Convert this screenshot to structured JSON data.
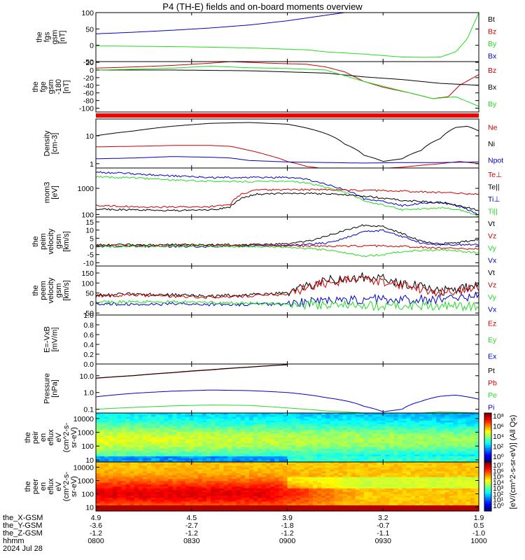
{
  "title": "P4 (TH-E) fields and on-board moments overview",
  "colors": {
    "black": "#000000",
    "red": "#cc0000",
    "green": "#22dd22",
    "blue": "#0000cc",
    "bar": "#ee0000"
  },
  "chart_data": [
    {
      "type": "line",
      "ylabel": [
        "the",
        "fgs",
        "gsm",
        "[nT]"
      ],
      "ylim": [
        -50,
        100
      ],
      "yticks": [
        "100",
        "50",
        "0",
        "-50"
      ],
      "ytick_values": [
        100,
        50,
        0,
        -50
      ],
      "legend": [
        "Bt",
        "Bz",
        "By",
        "Bx"
      ],
      "legend_colors": [
        "black",
        "red",
        "green",
        "blue"
      ],
      "series": [
        {
          "color": "blue",
          "x": [
            0,
            0.1,
            0.2,
            0.3,
            0.4,
            0.5,
            0.6,
            0.65
          ],
          "y": [
            35,
            40,
            46,
            53,
            62,
            75,
            92,
            100
          ]
        },
        {
          "color": "green",
          "x": [
            0,
            0.2,
            0.4,
            0.55,
            0.6,
            0.7,
            0.8,
            0.86,
            0.9,
            0.94,
            0.97,
            1.0
          ],
          "y": [
            -2,
            -4,
            -8,
            -14,
            -20,
            -27,
            -36,
            -37,
            -36,
            -20,
            20,
            100
          ]
        }
      ]
    },
    {
      "type": "line",
      "ylabel": [
        "the",
        "fge",
        "gsm",
        "-180",
        "[nT]"
      ],
      "ylim": [
        -110,
        22
      ],
      "yticks": [
        "20",
        "0",
        "-20",
        "-40",
        "-60",
        "-80",
        "-100"
      ],
      "ytick_values": [
        20,
        0,
        -20,
        -40,
        -60,
        -80,
        -100
      ],
      "legend": [
        "Bz",
        "Bx",
        "By"
      ],
      "legend_colors": [
        "red",
        "black",
        "green"
      ],
      "series": [
        {
          "color": "red",
          "x": [
            0,
            0.1,
            0.2,
            0.3,
            0.35,
            0.45,
            0.55,
            0.6,
            0.65,
            0.7,
            0.75,
            0.82,
            0.88,
            0.92,
            0.95,
            1.0
          ],
          "y": [
            5,
            8,
            12,
            18,
            22,
            18,
            15,
            8,
            -5,
            -30,
            -45,
            -60,
            -75,
            -70,
            -40,
            -12
          ]
        },
        {
          "color": "black",
          "x": [
            0,
            0.2,
            0.4,
            0.6,
            0.7,
            0.8,
            0.9,
            1.0
          ],
          "y": [
            0,
            0,
            -2,
            -8,
            -18,
            -25,
            -35,
            -40
          ]
        },
        {
          "color": "green",
          "x": [
            0,
            0.1,
            0.2,
            0.3,
            0.4,
            0.5,
            0.6,
            0.7,
            0.8,
            0.88,
            0.94,
            1.0
          ],
          "y": [
            0,
            2,
            5,
            10,
            6,
            4,
            0,
            -30,
            -55,
            -75,
            -70,
            -95
          ]
        }
      ]
    },
    {
      "type": "area",
      "ylim": [
        0,
        1
      ]
    },
    {
      "type": "line",
      "ylabel": [
        "Density",
        "[cm-3]"
      ],
      "yscale": "log",
      "ylim": [
        0.7,
        40
      ],
      "yticks": [
        "10",
        "1"
      ],
      "ytick_values": [
        10,
        1
      ],
      "legend": [
        "Ne",
        "Ni",
        "Npot"
      ],
      "legend_colors": [
        "red",
        "black",
        "blue"
      ],
      "series": [
        {
          "color": "black",
          "x": [
            0,
            0.1,
            0.2,
            0.3,
            0.4,
            0.5,
            0.6,
            0.65,
            0.7,
            0.75,
            0.8,
            0.85,
            0.9,
            0.94,
            0.97,
            1.0
          ],
          "y": [
            10,
            15,
            22,
            28,
            30,
            26,
            12,
            5,
            2,
            1.2,
            1.5,
            3,
            8,
            20,
            22,
            15
          ]
        },
        {
          "color": "red",
          "x": [
            0,
            0.1,
            0.2,
            0.3,
            0.35,
            0.4,
            0.45,
            0.5,
            0.55,
            0.6,
            0.7,
            0.8,
            0.9,
            0.95,
            1.0
          ],
          "y": [
            4,
            4.2,
            4.5,
            4.5,
            4.2,
            3,
            2,
            1.2,
            0.8,
            0.65,
            0.6,
            0.75,
            1.0,
            1.2,
            1.0
          ]
        },
        {
          "color": "blue",
          "x": [
            0,
            0.1,
            0.2,
            0.3,
            0.35,
            0.4,
            0.5,
            0.6,
            0.7,
            0.8,
            0.9,
            1.0
          ],
          "y": [
            1.5,
            1.6,
            1.8,
            1.7,
            1.6,
            1.3,
            1.15,
            1.1,
            1.05,
            1.1,
            1.1,
            1.15
          ]
        }
      ]
    },
    {
      "type": "line",
      "ylabel": [
        "mom3",
        "[eV]"
      ],
      "yscale": "log",
      "ylim": [
        80,
        6000
      ],
      "yticks": [
        "1000",
        "100"
      ],
      "ytick_values": [
        1000,
        100
      ],
      "legend": [
        "Te⊥",
        "Te||",
        "Ti⊥",
        "Ti||"
      ],
      "legend_colors": [
        "red",
        "black",
        "blue",
        "green"
      ],
      "series": [
        {
          "color": "blue",
          "x": [
            0,
            0.1,
            0.2,
            0.3,
            0.4,
            0.5,
            0.55,
            0.6,
            0.65,
            0.7,
            0.8,
            0.9,
            0.95,
            1.0
          ],
          "y": [
            4200,
            3600,
            3000,
            2600,
            2600,
            2600,
            2200,
            1400,
            900,
            400,
            220,
            300,
            200,
            90
          ]
        },
        {
          "color": "green",
          "x": [
            0,
            0.1,
            0.2,
            0.3,
            0.4,
            0.5,
            0.55,
            0.6,
            0.65,
            0.7,
            0.8,
            0.9,
            0.95,
            1.0
          ],
          "y": [
            2800,
            2500,
            2100,
            1900,
            1800,
            1900,
            1600,
            1100,
            700,
            320,
            150,
            180,
            150,
            80
          ]
        },
        {
          "color": "red",
          "x": [
            0,
            0.1,
            0.2,
            0.3,
            0.35,
            0.38,
            0.42,
            0.5,
            0.6,
            0.7,
            0.8,
            0.9,
            1.0
          ],
          "y": [
            220,
            200,
            190,
            200,
            240,
            600,
            850,
            900,
            880,
            850,
            780,
            700,
            600
          ]
        },
        {
          "color": "black",
          "x": [
            0,
            0.1,
            0.2,
            0.3,
            0.35,
            0.38,
            0.42,
            0.5,
            0.6,
            0.7,
            0.8,
            0.9,
            1.0
          ],
          "y": [
            160,
            150,
            140,
            150,
            190,
            420,
            600,
            650,
            620,
            500,
            350,
            280,
            140
          ]
        }
      ]
    },
    {
      "type": "line",
      "ylabel": [
        "the",
        "peim",
        "velocity",
        "gsm",
        "[km/s]"
      ],
      "ylim": [
        -12,
        18
      ],
      "yticks": [
        "15",
        "10",
        "5",
        "0",
        "-5",
        "-10"
      ],
      "ytick_values": [
        15,
        10,
        5,
        0,
        -5,
        -10
      ],
      "legend": [
        "Vt",
        "Vz",
        "Vy",
        "Vx"
      ],
      "legend_colors": [
        "black",
        "red",
        "green",
        "blue"
      ],
      "series": [
        {
          "color": "black",
          "x": [
            0,
            0.2,
            0.4,
            0.5,
            0.55,
            0.6,
            0.65,
            0.7,
            0.75,
            0.8,
            0.85,
            0.9,
            0.95,
            1.0
          ],
          "y": [
            1,
            1,
            1,
            1.5,
            3,
            6,
            10,
            13,
            12,
            8,
            3,
            1.5,
            2.5,
            4
          ]
        },
        {
          "color": "blue",
          "x": [
            0,
            0.3,
            0.5,
            0.6,
            0.65,
            0.7,
            0.75,
            0.8,
            0.85,
            0.9,
            1.0
          ],
          "y": [
            0,
            0,
            0.5,
            2,
            5,
            9,
            10,
            6,
            2,
            1,
            1
          ]
        },
        {
          "color": "red",
          "x": [
            0,
            0.5,
            0.6,
            0.7,
            0.8,
            0.9,
            1.0
          ],
          "y": [
            0.5,
            0.5,
            0,
            0.5,
            0,
            -1,
            -1.5
          ]
        },
        {
          "color": "green",
          "x": [
            0,
            0.4,
            0.5,
            0.6,
            0.65,
            0.7,
            0.75,
            0.8,
            0.9,
            1.0
          ],
          "y": [
            0,
            0,
            -0.5,
            -2,
            -4,
            -6,
            -5,
            -3,
            -2,
            -4
          ]
        }
      ]
    },
    {
      "type": "line",
      "ylabel": [
        "the",
        "peem",
        "velocity",
        "gsm",
        "[km/s]"
      ],
      "ylim": [
        -60,
        185
      ],
      "yticks": [
        "150",
        "100",
        "50",
        "0",
        "-50"
      ],
      "ytick_values": [
        150,
        100,
        50,
        0,
        -50
      ],
      "legend": [
        "Vt",
        "Vz",
        "Vy",
        "Vx"
      ],
      "legend_colors": [
        "black",
        "red",
        "green",
        "blue"
      ],
      "series": [
        {
          "color": "black",
          "x": [
            0,
            0.1,
            0.2,
            0.3,
            0.4,
            0.5,
            0.55,
            0.6,
            0.65,
            0.7,
            0.75,
            0.8,
            0.85,
            0.9,
            0.95,
            1.0
          ],
          "y": [
            40,
            45,
            40,
            35,
            40,
            50,
            80,
            110,
            125,
            130,
            120,
            100,
            80,
            60,
            70,
            85
          ]
        },
        {
          "color": "red",
          "x": [
            0,
            0.1,
            0.2,
            0.3,
            0.4,
            0.5,
            0.55,
            0.6,
            0.65,
            0.7,
            0.75,
            0.8,
            0.85,
            0.9,
            0.95,
            1.0
          ],
          "y": [
            35,
            40,
            35,
            30,
            35,
            45,
            75,
            100,
            115,
            120,
            110,
            90,
            70,
            50,
            60,
            75
          ]
        },
        {
          "color": "blue",
          "x": [
            0,
            0.2,
            0.4,
            0.5,
            0.6,
            0.7,
            0.8,
            0.9,
            1.0
          ],
          "y": [
            -5,
            -5,
            -8,
            -5,
            10,
            20,
            15,
            20,
            40
          ]
        },
        {
          "color": "green",
          "x": [
            0,
            0.2,
            0.4,
            0.5,
            0.6,
            0.7,
            0.8,
            0.9,
            1.0
          ],
          "y": [
            5,
            5,
            0,
            -5,
            -10,
            -15,
            -10,
            -15,
            -20
          ]
        }
      ]
    },
    {
      "type": "line",
      "ylabel": [
        "E=-VxB",
        "[mV/m]"
      ],
      "ylim": [
        0,
        1
      ],
      "yticks": [
        "1.0",
        "0.8",
        "0.6",
        "0.4",
        "0.2",
        "0.0"
      ],
      "ytick_values": [
        1.0,
        0.8,
        0.6,
        0.4,
        0.2,
        0.0
      ],
      "legend": [
        "Ez",
        "Ey",
        "Ex"
      ],
      "legend_colors": [
        "red",
        "green",
        "blue"
      ],
      "series": []
    },
    {
      "type": "line",
      "ylabel": [
        "Pressure",
        "[nPa]"
      ],
      "yscale": "log",
      "ylim": [
        0.06,
        50
      ],
      "yticks": [
        "10.0",
        "1.0",
        "0.1"
      ],
      "ytick_values": [
        10,
        1,
        0.1
      ],
      "legend": [
        "Pt",
        "Pb",
        "Pe",
        "Pi"
      ],
      "legend_colors": [
        "black",
        "red",
        "green",
        "blue"
      ],
      "series": [
        {
          "color": "red",
          "x": [
            0,
            0.1,
            0.2,
            0.3,
            0.4,
            0.5
          ],
          "y": [
            7,
            10,
            15,
            22,
            32,
            45
          ]
        },
        {
          "color": "black",
          "x": [
            0,
            0.1,
            0.2,
            0.3,
            0.4,
            0.5
          ],
          "y": [
            7.2,
            10.3,
            15.5,
            23,
            33,
            46
          ]
        },
        {
          "color": "blue",
          "x": [
            0,
            0.1,
            0.2,
            0.3,
            0.4,
            0.5,
            0.6,
            0.7,
            0.75,
            0.8,
            0.85,
            0.9,
            0.94,
            1.0
          ],
          "y": [
            0.55,
            0.9,
            1.2,
            1.4,
            1.3,
            1.0,
            0.5,
            0.15,
            0.07,
            0.1,
            0.3,
            0.6,
            0.7,
            0.4
          ]
        },
        {
          "color": "green",
          "x": [
            0,
            0.1,
            0.2,
            0.3,
            0.4,
            0.5,
            0.6,
            0.7,
            0.8,
            0.9,
            1.0
          ],
          "y": [
            0.1,
            0.13,
            0.16,
            0.18,
            0.17,
            0.12,
            0.08,
            0.06,
            0.05,
            0.07,
            0.06
          ]
        }
      ]
    },
    {
      "type": "heatmap",
      "ylabel": [
        "the",
        "peir",
        "en",
        "eflux",
        "eV",
        "(cm^2-s-",
        "sr-eV)"
      ],
      "yscale": "log",
      "ylim": [
        7,
        25000
      ],
      "yticks": [
        "10000",
        "1000",
        "100",
        "10"
      ],
      "ytick_values": [
        10000,
        1000,
        100,
        10
      ],
      "colorbar_labels": [
        "10⁸",
        "10⁶",
        "10⁴",
        "10²",
        "10⁰"
      ]
    },
    {
      "type": "heatmap",
      "ylabel": [
        "the",
        "peer",
        "en",
        "eflux",
        "eV",
        "(cm^2-s-",
        "sr-eV)"
      ],
      "yscale": "log",
      "ylim": [
        5,
        25000
      ],
      "yticks": [
        "10000",
        "1000",
        "100",
        "10"
      ],
      "ytick_values": [
        10000,
        1000,
        100,
        10
      ],
      "colorbar_labels": [
        "10⁷",
        "10⁶",
        "10⁵",
        "10⁴",
        "10³",
        "10²",
        "10¹",
        "10⁰"
      ]
    }
  ],
  "colorbar_title": "[eV/(cm^2-s-sr-eV)] (All Qs)",
  "xaxis": {
    "row_labels": [
      "the_X-GSM",
      "the_Y-GSM",
      "the_Z-GSM",
      "hhmm",
      "2024 Jul 28"
    ],
    "ticks": [
      {
        "x": 0.0,
        "values": [
          "4.9",
          "-3.6",
          "-1.2",
          "0800"
        ]
      },
      {
        "x": 0.25,
        "values": [
          "4.5",
          "-2.7",
          "-1.2",
          "0830"
        ]
      },
      {
        "x": 0.5,
        "values": [
          "3.9",
          "-1.8",
          "-1.2",
          "0900"
        ]
      },
      {
        "x": 0.75,
        "values": [
          "3.2",
          "-0.7",
          "-1.1",
          "0930"
        ]
      },
      {
        "x": 1.0,
        "values": [
          "1.9",
          "0.5",
          "-1.0",
          "1000"
        ]
      }
    ]
  }
}
